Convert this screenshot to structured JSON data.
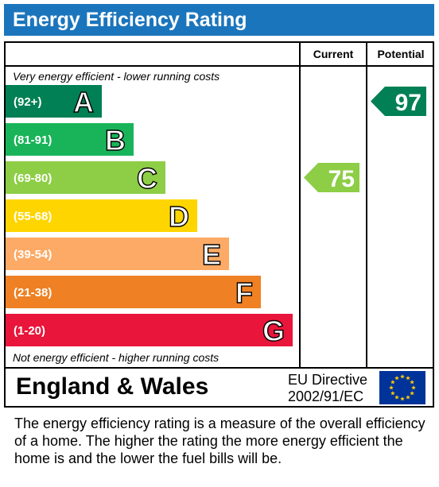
{
  "header": {
    "title": "Energy Efficiency Rating"
  },
  "columns": {
    "current": "Current",
    "potential": "Potential"
  },
  "notes": {
    "top": "Very energy efficient - lower running costs",
    "bottom": "Not energy efficient - higher running costs"
  },
  "footer": {
    "region": "England & Wales",
    "directive_line1": "EU Directive",
    "directive_line2": "2002/91/EC"
  },
  "description": "The energy efficiency rating is a measure of the overall efficiency of a home.  The higher the rating the more energy efficient the home is and the lower the fuel bills will be.",
  "chart_data": {
    "type": "bar",
    "categories": [
      "A",
      "B",
      "C",
      "D",
      "E",
      "F",
      "G"
    ],
    "ranges": [
      "(92+)",
      "(81-91)",
      "(69-80)",
      "(55-68)",
      "(39-54)",
      "(21-38)",
      "(1-20)"
    ],
    "colors": [
      "#008054",
      "#19b459",
      "#8dce46",
      "#ffd500",
      "#fcaa65",
      "#ef8023",
      "#e9153b"
    ],
    "current": {
      "value": 75,
      "band": "C",
      "color": "#8dce46"
    },
    "potential": {
      "value": 97,
      "band": "A",
      "color": "#008054"
    }
  }
}
